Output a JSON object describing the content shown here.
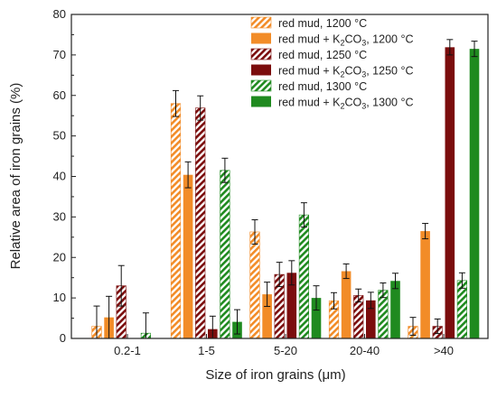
{
  "chart_data": {
    "type": "bar",
    "xlabel": "Size of iron grains (μm)",
    "ylabel": "Relative area of iron grains (%)",
    "ylim": [
      0,
      80
    ],
    "yticks": [
      0,
      10,
      20,
      30,
      40,
      50,
      60,
      70,
      80
    ],
    "categories": [
      "0.2-1",
      "1-5",
      "5-20",
      "20-40",
      ">40"
    ],
    "legend_position": "top-right",
    "error_bars": true,
    "series": [
      {
        "name": "red mud, 1200 °C",
        "name_parts": [
          "red mud, 1200 °C"
        ],
        "color": "#f28c28",
        "hatched": true,
        "values": [
          3.0,
          58.0,
          26.3,
          9.3,
          3.0
        ],
        "errors": [
          5.0,
          3.2,
          3.0,
          2.0,
          2.2
        ]
      },
      {
        "name": "red mud + K2CO3, 1200 °C",
        "name_parts": [
          "red mud + K",
          "2",
          "CO",
          "3",
          ", 1200 °C"
        ],
        "color": "#f28c28",
        "hatched": false,
        "values": [
          5.2,
          40.4,
          10.9,
          16.6,
          26.5
        ],
        "errors": [
          5.2,
          3.2,
          3.0,
          1.8,
          1.9
        ]
      },
      {
        "name": "red mud, 1250 °C",
        "name_parts": [
          "red mud, 1250 °C"
        ],
        "color": "#7b0d0d",
        "hatched": true,
        "values": [
          13.0,
          56.9,
          15.8,
          10.6,
          3.0
        ],
        "errors": [
          5.0,
          3.0,
          3.0,
          1.6,
          1.8
        ]
      },
      {
        "name": "red mud + K2CO3, 1250 °C",
        "name_parts": [
          "red mud + K",
          "2",
          "CO",
          "3",
          ", 1250 °C"
        ],
        "color": "#7b0d0d",
        "hatched": false,
        "values": [
          0,
          2.3,
          16.2,
          9.4,
          71.9
        ],
        "errors": [
          0,
          3.2,
          3.0,
          2.0,
          1.9
        ]
      },
      {
        "name": "red mud, 1300 °C",
        "name_parts": [
          "red mud, 1300 °C"
        ],
        "color": "#1f8a1f",
        "hatched": true,
        "values": [
          1.3,
          41.5,
          30.5,
          11.9,
          14.3
        ],
        "errors": [
          5.0,
          3.0,
          3.0,
          1.8,
          1.9
        ]
      },
      {
        "name": "red mud + K2CO3, 1300 °C",
        "name_parts": [
          "red mud + K",
          "2",
          "CO",
          "3",
          ", 1300 °C"
        ],
        "color": "#1f8a1f",
        "hatched": false,
        "values": [
          0,
          4.1,
          10.0,
          14.2,
          71.5
        ],
        "errors": [
          0,
          3.0,
          3.0,
          1.9,
          1.9
        ]
      }
    ]
  }
}
